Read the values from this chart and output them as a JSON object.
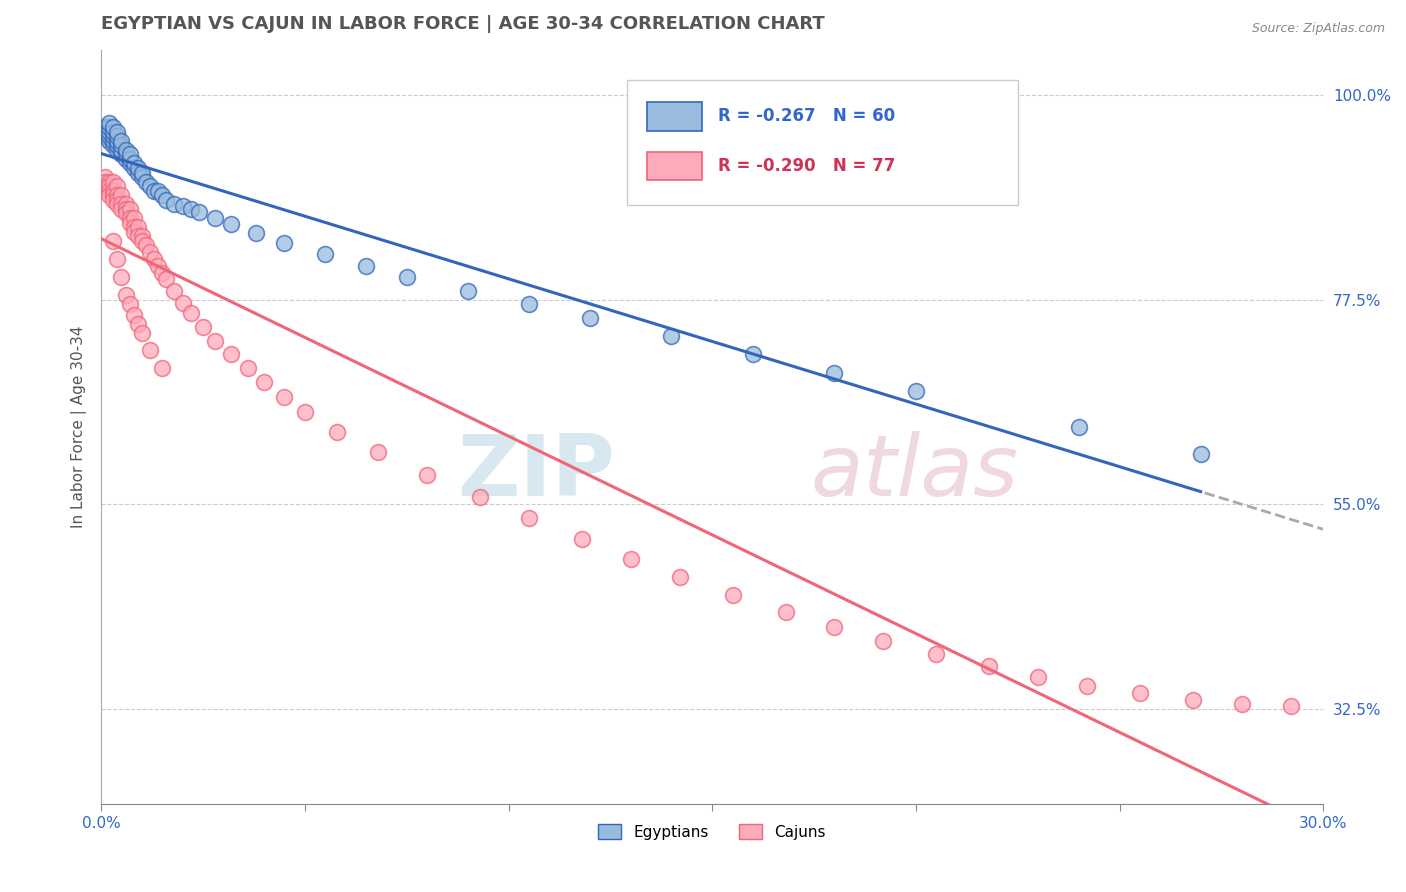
{
  "title": "EGYPTIAN VS CAJUN IN LABOR FORCE | AGE 30-34 CORRELATION CHART",
  "source_text": "Source: ZipAtlas.com",
  "ylabel": "In Labor Force | Age 30-34",
  "xlim": [
    0.0,
    0.3
  ],
  "ylim": [
    0.22,
    1.05
  ],
  "xticks": [
    0.0,
    0.05,
    0.1,
    0.15,
    0.2,
    0.25,
    0.3
  ],
  "xticklabels": [
    "0.0%",
    "",
    "",
    "",
    "",
    "",
    "30.0%"
  ],
  "yticks": [
    0.325,
    0.55,
    0.775,
    1.0
  ],
  "yticklabels": [
    "32.5%",
    "55.0%",
    "77.5%",
    "100.0%"
  ],
  "legend_r_egyptian": "-0.267",
  "legend_n_egyptian": "60",
  "legend_r_cajun": "-0.290",
  "legend_n_cajun": "77",
  "color_egyptian": "#99BBDD",
  "color_cajun": "#FFAABB",
  "color_line_egyptian": "#3366BB",
  "color_line_cajun": "#EE6677",
  "watermark_zip": "ZIP",
  "watermark_atlas": "atlas",
  "background_color": "#FFFFFF",
  "grid_color": "#CCCCCC",
  "title_fontsize": 13,
  "axis_label_fontsize": 11,
  "tick_fontsize": 11,
  "legend_fontsize": 12,
  "egyptian_x": [
    0.001,
    0.001,
    0.001,
    0.002,
    0.002,
    0.002,
    0.002,
    0.002,
    0.003,
    0.003,
    0.003,
    0.003,
    0.003,
    0.004,
    0.004,
    0.004,
    0.004,
    0.004,
    0.005,
    0.005,
    0.005,
    0.005,
    0.006,
    0.006,
    0.006,
    0.007,
    0.007,
    0.007,
    0.008,
    0.008,
    0.009,
    0.009,
    0.01,
    0.01,
    0.011,
    0.012,
    0.013,
    0.014,
    0.015,
    0.016,
    0.018,
    0.02,
    0.022,
    0.024,
    0.028,
    0.032,
    0.038,
    0.045,
    0.055,
    0.065,
    0.075,
    0.09,
    0.105,
    0.12,
    0.14,
    0.16,
    0.18,
    0.2,
    0.24,
    0.27
  ],
  "egyptian_y": [
    0.955,
    0.96,
    0.965,
    0.95,
    0.955,
    0.96,
    0.965,
    0.97,
    0.945,
    0.95,
    0.955,
    0.96,
    0.965,
    0.94,
    0.945,
    0.95,
    0.955,
    0.96,
    0.935,
    0.94,
    0.945,
    0.95,
    0.93,
    0.935,
    0.94,
    0.925,
    0.93,
    0.935,
    0.92,
    0.925,
    0.915,
    0.92,
    0.91,
    0.915,
    0.905,
    0.9,
    0.895,
    0.895,
    0.89,
    0.885,
    0.88,
    0.878,
    0.875,
    0.872,
    0.865,
    0.858,
    0.848,
    0.838,
    0.825,
    0.812,
    0.8,
    0.785,
    0.77,
    0.755,
    0.735,
    0.715,
    0.695,
    0.675,
    0.635,
    0.605
  ],
  "cajun_x": [
    0.001,
    0.001,
    0.001,
    0.002,
    0.002,
    0.002,
    0.002,
    0.003,
    0.003,
    0.003,
    0.003,
    0.004,
    0.004,
    0.004,
    0.004,
    0.005,
    0.005,
    0.005,
    0.006,
    0.006,
    0.006,
    0.007,
    0.007,
    0.007,
    0.008,
    0.008,
    0.008,
    0.009,
    0.009,
    0.01,
    0.01,
    0.011,
    0.012,
    0.013,
    0.014,
    0.015,
    0.016,
    0.018,
    0.02,
    0.022,
    0.025,
    0.028,
    0.032,
    0.036,
    0.04,
    0.045,
    0.05,
    0.058,
    0.068,
    0.08,
    0.093,
    0.105,
    0.118,
    0.13,
    0.142,
    0.155,
    0.168,
    0.18,
    0.192,
    0.205,
    0.218,
    0.23,
    0.242,
    0.255,
    0.268,
    0.28,
    0.292,
    0.003,
    0.004,
    0.005,
    0.006,
    0.007,
    0.008,
    0.009,
    0.01,
    0.012,
    0.015
  ],
  "cajun_y": [
    0.91,
    0.905,
    0.9,
    0.905,
    0.9,
    0.895,
    0.89,
    0.905,
    0.895,
    0.89,
    0.885,
    0.9,
    0.89,
    0.885,
    0.88,
    0.89,
    0.88,
    0.875,
    0.88,
    0.875,
    0.87,
    0.875,
    0.865,
    0.86,
    0.865,
    0.855,
    0.85,
    0.855,
    0.845,
    0.845,
    0.84,
    0.835,
    0.828,
    0.82,
    0.812,
    0.805,
    0.798,
    0.785,
    0.772,
    0.76,
    0.745,
    0.73,
    0.715,
    0.7,
    0.685,
    0.668,
    0.652,
    0.63,
    0.608,
    0.582,
    0.558,
    0.535,
    0.512,
    0.49,
    0.47,
    0.45,
    0.432,
    0.415,
    0.4,
    0.385,
    0.372,
    0.36,
    0.35,
    0.342,
    0.335,
    0.33,
    0.328,
    0.84,
    0.82,
    0.8,
    0.78,
    0.77,
    0.758,
    0.748,
    0.738,
    0.72,
    0.7
  ]
}
